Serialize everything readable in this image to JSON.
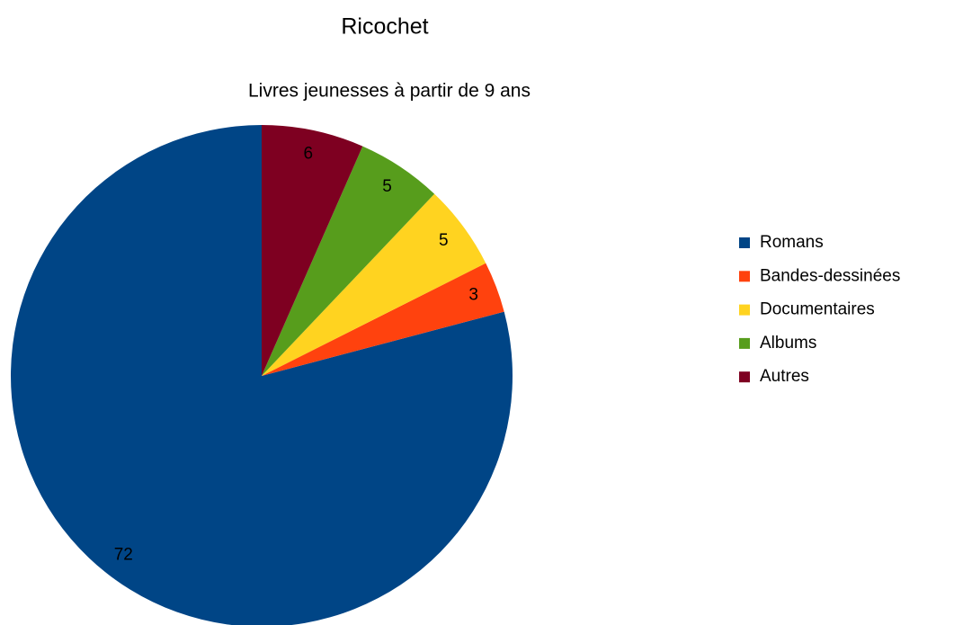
{
  "chart_data": {
    "type": "pie",
    "title": "Ricochet",
    "subtitle": "Livres jeunesses à partir de 9 ans",
    "categories": [
      "Romans",
      "Bandes-dessinées",
      "Documentaires",
      "Albums",
      "Autres"
    ],
    "values": [
      72,
      3,
      5,
      5,
      6
    ],
    "colors": [
      "#004586",
      "#ff420e",
      "#ffd320",
      "#579d1c",
      "#7e0021"
    ],
    "legend": "right"
  }
}
